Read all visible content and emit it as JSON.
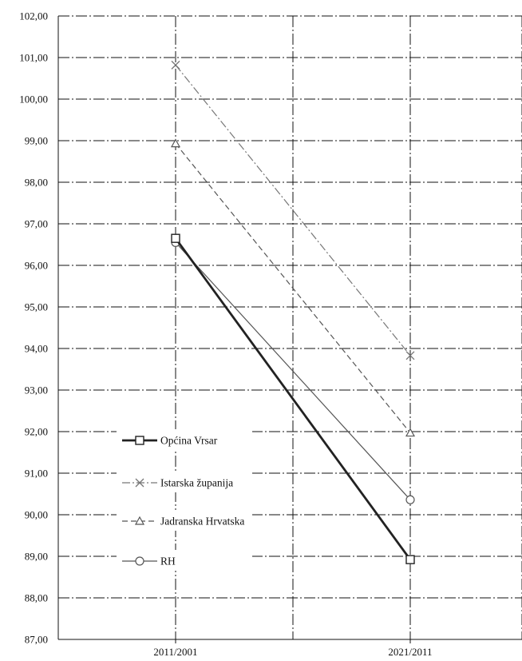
{
  "chart_data": {
    "type": "line",
    "title": "",
    "xlabel": "",
    "ylabel": "",
    "categories": [
      "2011/2001",
      "2021/2011"
    ],
    "ylim": [
      87,
      102
    ],
    "y_tick_step": 1,
    "y_tick_labels": [
      "87,00",
      "88,00",
      "89,00",
      "90,00",
      "91,00",
      "92,00",
      "93,00",
      "94,00",
      "95,00",
      "96,00",
      "97,00",
      "98,00",
      "99,00",
      "100,00",
      "101,00",
      "102,00"
    ],
    "grid": true,
    "legend_position": "left",
    "series": [
      {
        "name": "Općina Vrsar",
        "values": [
          96.65,
          88.92
        ],
        "marker": "square",
        "dash": "solid",
        "weight": "heavy",
        "color": "#222222"
      },
      {
        "name": "Istarska županija",
        "values": [
          100.82,
          93.83
        ],
        "marker": "cross",
        "dash": "dash-dot",
        "weight": "thin",
        "color": "#777777"
      },
      {
        "name": "Jadranska Hrvatska",
        "values": [
          98.93,
          91.97
        ],
        "marker": "triangle",
        "dash": "dashed",
        "weight": "thin",
        "color": "#555555"
      },
      {
        "name": "RH",
        "values": [
          96.55,
          90.36
        ],
        "marker": "circle",
        "dash": "solid",
        "weight": "thin",
        "color": "#555555"
      }
    ]
  }
}
